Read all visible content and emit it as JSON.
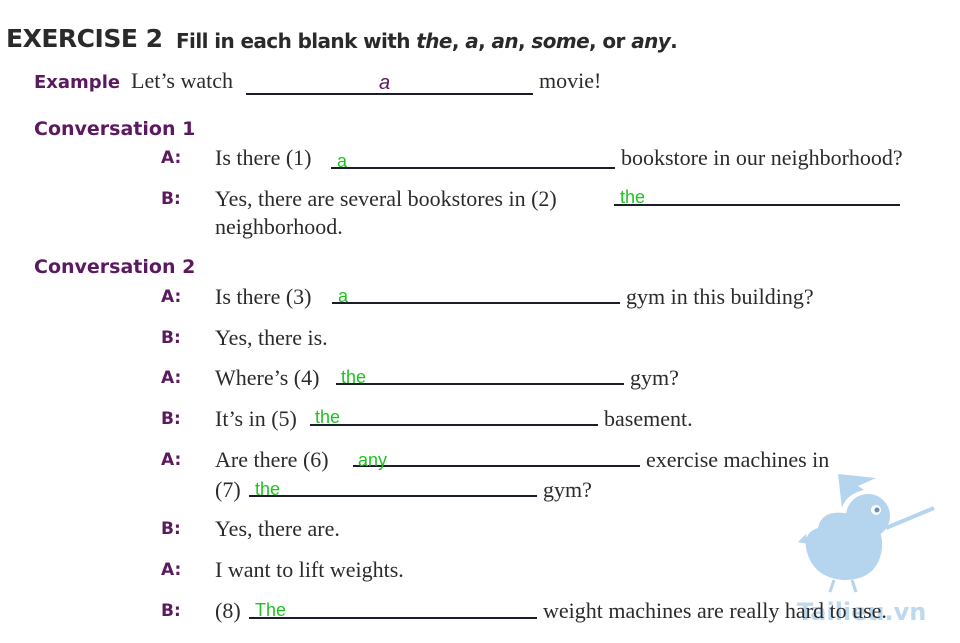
{
  "header": {
    "exercise": "EXERCISE 2",
    "instruction_prefix": "Fill in each blank with ",
    "opt1": "the",
    "sep1": ", ",
    "opt2": "a",
    "sep2": ", ",
    "opt3": "an",
    "sep3": ", ",
    "opt4": "some",
    "sep4": ", or ",
    "opt5": "any",
    "end": "."
  },
  "example": {
    "label": "Example",
    "before": "Let’s watch",
    "answer": "a",
    "after": "movie!"
  },
  "conversation1": {
    "title": "Conversation 1",
    "lines": [
      {
        "speaker": "A:",
        "before": "Is there (1)",
        "answer": "a",
        "after": "bookstore in our neighborhood?"
      },
      {
        "speaker": "B:",
        "before": "Yes, there are several bookstores in (2)",
        "answer": "the",
        "after": "neighborhood."
      }
    ]
  },
  "conversation2": {
    "title": "Conversation 2",
    "lines": [
      {
        "speaker": "A:",
        "before": "Is there (3)",
        "answer": "a",
        "after": "gym in this building?"
      },
      {
        "speaker": "B:",
        "text": "Yes, there is."
      },
      {
        "speaker": "A:",
        "before": "Where’s (4)",
        "answer": "the",
        "after": "gym?"
      },
      {
        "speaker": "B:",
        "before": "It’s in (5)",
        "answer": "the",
        "after": "basement."
      },
      {
        "speaker": "A:",
        "before": "Are there (6)",
        "answer": "any",
        "after": "exercise machines in",
        "before2": "(7)",
        "answer2": "the",
        "after2": "gym?"
      },
      {
        "speaker": "B:",
        "text": "Yes, there are."
      },
      {
        "speaker": "A:",
        "text": "I want to lift weights."
      },
      {
        "speaker": "B:",
        "before": "(8)",
        "answer": "The",
        "after": "weight machines are really hard to use."
      }
    ]
  },
  "watermark": {
    "text": "Tailieu.vn",
    "color": "#a9cdea"
  }
}
